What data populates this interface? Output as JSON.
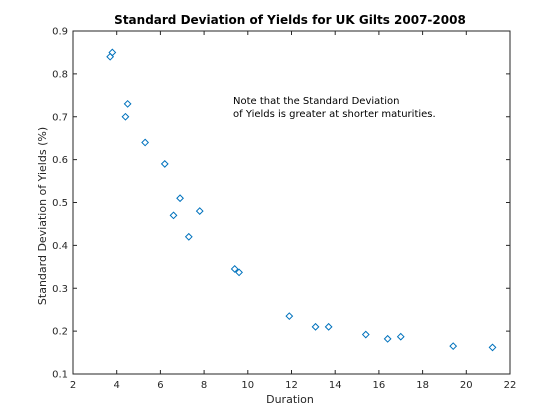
{
  "chart_data": {
    "type": "scatter",
    "title": "Standard Deviation of Yields for UK Gilts 2007-2008",
    "xlabel": "Duration",
    "ylabel": "Standard Deviation of Yields (%)",
    "xlim": [
      2,
      22
    ],
    "ylim": [
      0.1,
      0.9
    ],
    "xticks": [
      2,
      4,
      6,
      8,
      10,
      12,
      14,
      16,
      18,
      20,
      22
    ],
    "yticks": [
      0.1,
      0.2,
      0.3,
      0.4,
      0.5,
      0.6,
      0.7,
      0.8,
      0.9
    ],
    "xtick_labels": [
      "2",
      "4",
      "6",
      "8",
      "10",
      "12",
      "14",
      "16",
      "18",
      "20",
      "22"
    ],
    "ytick_labels": [
      "0.1",
      "0.2",
      "0.3",
      "0.4",
      "0.5",
      "0.6",
      "0.7",
      "0.8",
      "0.9"
    ],
    "grid": false,
    "marker": "diamond",
    "marker_color": "#0072bd",
    "annotation_lines": [
      "Note that the Standard Deviation",
      "of Yields is greater at shorter maturities."
    ],
    "points": [
      {
        "x": 3.7,
        "y": 0.84
      },
      {
        "x": 3.8,
        "y": 0.85
      },
      {
        "x": 4.4,
        "y": 0.7
      },
      {
        "x": 4.5,
        "y": 0.73
      },
      {
        "x": 5.3,
        "y": 0.64
      },
      {
        "x": 6.2,
        "y": 0.59
      },
      {
        "x": 6.6,
        "y": 0.47
      },
      {
        "x": 6.9,
        "y": 0.51
      },
      {
        "x": 7.3,
        "y": 0.42
      },
      {
        "x": 7.8,
        "y": 0.48
      },
      {
        "x": 9.4,
        "y": 0.345
      },
      {
        "x": 9.6,
        "y": 0.337
      },
      {
        "x": 11.9,
        "y": 0.235
      },
      {
        "x": 13.1,
        "y": 0.21
      },
      {
        "x": 13.7,
        "y": 0.21
      },
      {
        "x": 15.4,
        "y": 0.192
      },
      {
        "x": 16.4,
        "y": 0.182
      },
      {
        "x": 17.0,
        "y": 0.187
      },
      {
        "x": 19.4,
        "y": 0.165
      },
      {
        "x": 21.2,
        "y": 0.162
      }
    ]
  }
}
